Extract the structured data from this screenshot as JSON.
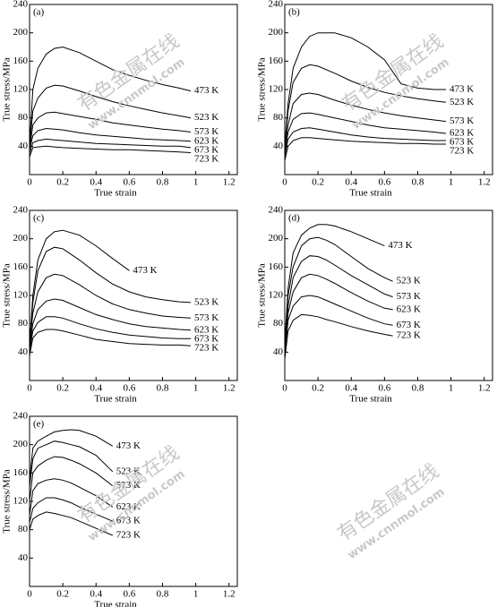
{
  "watermarks": [
    "有色金属在线",
    "www.cnnmol.com"
  ],
  "chart_data": [
    {
      "type": "line",
      "title": "(a)",
      "x_label": "True strain",
      "y_label": "True stress/MPa",
      "xlim": [
        0,
        1.25
      ],
      "ylim": [
        0,
        240
      ],
      "xticks": [
        0,
        0.2,
        0.4,
        0.6,
        0.8,
        1.0,
        1.2
      ],
      "yticks": [
        40,
        80,
        120,
        160,
        200,
        240
      ],
      "x": [
        0,
        0.02,
        0.05,
        0.1,
        0.15,
        0.2,
        0.3,
        0.4,
        0.5,
        0.6,
        0.7,
        0.8,
        0.9,
        0.97
      ],
      "series": [
        {
          "name": "473 K",
          "color": "#000000",
          "values": [
            40,
            120,
            150,
            170,
            178,
            180,
            172,
            160,
            148,
            140,
            133,
            127,
            122,
            118
          ]
        },
        {
          "name": "523 K",
          "color": "#000000",
          "values": [
            40,
            90,
            108,
            122,
            126,
            125,
            118,
            110,
            103,
            97,
            92,
            87,
            83,
            80
          ]
        },
        {
          "name": "573 K",
          "color": "#000000",
          "values": [
            35,
            70,
            80,
            87,
            88,
            86,
            82,
            78,
            73,
            70,
            67,
            64,
            62,
            60
          ]
        },
        {
          "name": "623 K",
          "color": "#000000",
          "values": [
            35,
            55,
            62,
            65,
            64,
            63,
            59,
            56,
            54,
            52,
            50,
            49,
            48,
            47
          ]
        },
        {
          "name": "673 K",
          "color": "#000000",
          "values": [
            30,
            45,
            48,
            50,
            49,
            48,
            46,
            44,
            43,
            42,
            41,
            40,
            40,
            38
          ]
        },
        {
          "name": "723 K",
          "color": "#000000",
          "values": [
            25,
            38,
            39,
            40,
            39,
            38,
            37,
            36,
            35,
            35,
            34,
            33,
            32,
            31
          ]
        }
      ]
    },
    {
      "type": "line",
      "title": "(b)",
      "x_label": "True strain",
      "y_label": "True stress/MPa",
      "xlim": [
        0,
        1.25
      ],
      "ylim": [
        0,
        240
      ],
      "xticks": [
        0,
        0.2,
        0.4,
        0.6,
        0.8,
        1.0,
        1.2
      ],
      "yticks": [
        40,
        80,
        120,
        160,
        200,
        240
      ],
      "x": [
        0,
        0.02,
        0.05,
        0.1,
        0.15,
        0.2,
        0.3,
        0.4,
        0.5,
        0.6,
        0.7,
        0.8,
        0.9,
        0.97
      ],
      "series": [
        {
          "name": "473 K",
          "color": "#000000",
          "values": [
            40,
            100,
            150,
            180,
            195,
            200,
            200,
            193,
            180,
            162,
            128,
            122,
            120,
            120
          ]
        },
        {
          "name": "523 K",
          "color": "#000000",
          "values": [
            40,
            90,
            130,
            150,
            155,
            153,
            143,
            132,
            123,
            116,
            111,
            107,
            104,
            102
          ]
        },
        {
          "name": "573 K",
          "color": "#000000",
          "values": [
            35,
            70,
            100,
            113,
            115,
            113,
            105,
            98,
            92,
            87,
            83,
            80,
            77,
            75
          ]
        },
        {
          "name": "623 K",
          "color": "#000000",
          "values": [
            30,
            60,
            78,
            86,
            87,
            85,
            80,
            75,
            70,
            66,
            64,
            62,
            60,
            58
          ]
        },
        {
          "name": "673 K",
          "color": "#000000",
          "values": [
            25,
            50,
            60,
            65,
            66,
            64,
            60,
            56,
            53,
            51,
            50,
            49,
            48,
            48
          ]
        },
        {
          "name": "723 K",
          "color": "#000000",
          "values": [
            20,
            40,
            48,
            52,
            52,
            51,
            49,
            47,
            46,
            45,
            44,
            44,
            43,
            43
          ]
        }
      ]
    },
    {
      "type": "line",
      "title": "(c)",
      "x_label": "True strain",
      "y_label": "True stress/MPa",
      "xlim": [
        0,
        1.25
      ],
      "ylim": [
        0,
        240
      ],
      "xticks": [
        0,
        0.2,
        0.4,
        0.6,
        0.8,
        1.0,
        1.2
      ],
      "yticks": [
        40,
        80,
        120,
        160,
        200,
        240
      ],
      "x": [
        0,
        0.02,
        0.05,
        0.1,
        0.15,
        0.2,
        0.3,
        0.4,
        0.5,
        0.6,
        0.7,
        0.8,
        0.9,
        0.97
      ],
      "series": [
        {
          "name": "473 K",
          "color": "#000000",
          "values": [
            50,
            120,
            170,
            200,
            210,
            212,
            205,
            190,
            172,
            155,
            null,
            null,
            null,
            null
          ]
        },
        {
          "name": "523 K",
          "color": "#000000",
          "values": [
            50,
            110,
            155,
            182,
            188,
            186,
            170,
            152,
            136,
            125,
            118,
            114,
            111,
            110
          ]
        },
        {
          "name": "573 K",
          "color": "#000000",
          "values": [
            50,
            95,
            125,
            145,
            150,
            148,
            135,
            120,
            108,
            100,
            95,
            91,
            89,
            88
          ]
        },
        {
          "name": "623 K",
          "color": "#000000",
          "values": [
            45,
            80,
            100,
            112,
            115,
            113,
            103,
            93,
            86,
            80,
            76,
            74,
            72,
            71
          ]
        },
        {
          "name": "673 K",
          "color": "#000000",
          "values": [
            40,
            70,
            82,
            90,
            90,
            88,
            80,
            73,
            68,
            64,
            62,
            60,
            59,
            59
          ]
        },
        {
          "name": "723 K",
          "color": "#000000",
          "values": [
            35,
            60,
            68,
            72,
            72,
            70,
            64,
            58,
            55,
            52,
            51,
            50,
            50,
            49
          ]
        }
      ]
    },
    {
      "type": "line",
      "title": "(d)",
      "x_label": "True strain",
      "y_label": "True stress/MPa",
      "xlim": [
        0,
        1.25
      ],
      "ylim": [
        0,
        240
      ],
      "xticks": [
        0,
        0.2,
        0.4,
        0.6,
        0.8,
        1.0,
        1.2
      ],
      "yticks": [
        40,
        80,
        120,
        160,
        200,
        240
      ],
      "x": [
        0,
        0.02,
        0.05,
        0.1,
        0.15,
        0.2,
        0.25,
        0.3,
        0.4,
        0.5,
        0.6,
        0.65
      ],
      "series": [
        {
          "name": "473 K",
          "color": "#000000",
          "values": [
            50,
            130,
            180,
            205,
            215,
            220,
            220,
            218,
            210,
            200,
            190,
            null
          ]
        },
        {
          "name": "523 K",
          "color": "#000000",
          "values": [
            50,
            120,
            160,
            190,
            200,
            202,
            198,
            192,
            175,
            158,
            145,
            140
          ]
        },
        {
          "name": "573 K",
          "color": "#000000",
          "values": [
            45,
            105,
            145,
            168,
            176,
            175,
            170,
            163,
            148,
            135,
            122,
            118
          ]
        },
        {
          "name": "623 K",
          "color": "#000000",
          "values": [
            40,
            95,
            125,
            145,
            150,
            148,
            143,
            137,
            124,
            112,
            102,
            100
          ]
        },
        {
          "name": "673 K",
          "color": "#000000",
          "values": [
            35,
            85,
            105,
            118,
            120,
            118,
            113,
            108,
            98,
            88,
            80,
            78
          ]
        },
        {
          "name": "723 K",
          "color": "#000000",
          "values": [
            30,
            70,
            85,
            93,
            92,
            90,
            86,
            83,
            76,
            70,
            65,
            63
          ]
        }
      ]
    },
    {
      "type": "line",
      "title": "(e)",
      "x_label": "True strain",
      "y_label": "True stress/MPa",
      "xlim": [
        0,
        1.25
      ],
      "ylim": [
        0,
        240
      ],
      "xticks": [
        0,
        0.2,
        0.4,
        0.6,
        0.8,
        1.0,
        1.2
      ],
      "yticks": [
        40,
        80,
        120,
        160,
        200,
        240
      ],
      "x": [
        0,
        0.02,
        0.05,
        0.1,
        0.15,
        0.2,
        0.25,
        0.3,
        0.4,
        0.5
      ],
      "series": [
        {
          "name": "473 K",
          "color": "#000000",
          "values": [
            150,
            195,
            205,
            212,
            218,
            220,
            221,
            220,
            212,
            198
          ]
        },
        {
          "name": "523 K",
          "color": "#000000",
          "values": [
            140,
            180,
            195,
            200,
            205,
            203,
            200,
            197,
            185,
            162
          ]
        },
        {
          "name": "573 K",
          "color": "#000000",
          "values": [
            120,
            160,
            170,
            178,
            183,
            182,
            178,
            173,
            160,
            142
          ]
        },
        {
          "name": "623 K",
          "color": "#000000",
          "values": [
            100,
            135,
            145,
            150,
            152,
            150,
            146,
            140,
            128,
            112
          ]
        },
        {
          "name": "673 K",
          "color": "#000000",
          "values": [
            90,
            110,
            118,
            125,
            125,
            122,
            118,
            112,
            102,
            92
          ]
        },
        {
          "name": "723 K",
          "color": "#000000",
          "values": [
            80,
            95,
            100,
            105,
            103,
            100,
            97,
            92,
            82,
            72
          ]
        }
      ]
    }
  ]
}
